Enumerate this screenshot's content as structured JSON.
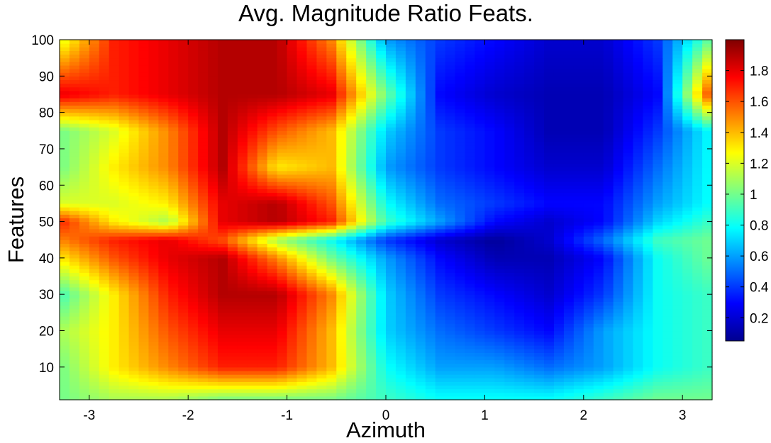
{
  "chart_data": {
    "type": "heatmap",
    "title": "Avg. Magnitude Ratio Feats.",
    "xlabel": "Azimuth",
    "ylabel": "Features",
    "xlim": [
      -3.3,
      3.3
    ],
    "ylim": [
      1,
      100
    ],
    "x_ticks": [
      "-3",
      "-2",
      "-1",
      "0",
      "1",
      "2",
      "3"
    ],
    "x_tick_values": [
      -3,
      -2,
      -1,
      0,
      1,
      2,
      3
    ],
    "y_ticks": [
      "10",
      "20",
      "30",
      "40",
      "50",
      "60",
      "70",
      "80",
      "90",
      "100"
    ],
    "y_tick_values": [
      10,
      20,
      30,
      40,
      50,
      60,
      70,
      80,
      90,
      100
    ],
    "colorbar": {
      "ticks": [
        "0.2",
        "0.4",
        "0.6",
        "0.8",
        "1",
        "1.2",
        "1.4",
        "1.6",
        "1.8"
      ],
      "tick_values": [
        0.2,
        0.4,
        0.6,
        0.8,
        1.0,
        1.2,
        1.4,
        1.6,
        1.8
      ],
      "range": [
        0.05,
        2.0
      ],
      "colormap": "jet"
    },
    "grid": false,
    "x_centers": [
      -3.3,
      -2.75,
      -2.2,
      -1.65,
      -1.1,
      -0.55,
      0,
      0.55,
      1.1,
      1.65,
      2.2,
      2.75,
      3.3
    ],
    "y_centers": [
      1,
      10,
      20,
      30,
      40,
      45,
      50,
      55,
      65,
      75,
      85,
      100
    ],
    "values": [
      [
        1.0,
        1.1,
        1.1,
        1.0,
        1.0,
        1.0,
        0.9,
        0.8,
        0.8,
        0.8,
        0.9,
        1.0,
        1.0
      ],
      [
        1.0,
        1.3,
        1.5,
        1.7,
        1.7,
        1.4,
        0.8,
        0.6,
        0.6,
        0.5,
        0.6,
        0.8,
        0.9
      ],
      [
        1.1,
        1.3,
        1.6,
        1.8,
        1.8,
        1.4,
        0.7,
        0.5,
        0.4,
        0.3,
        0.6,
        0.8,
        0.9
      ],
      [
        0.9,
        1.3,
        1.7,
        1.9,
        1.9,
        1.5,
        0.7,
        0.4,
        0.3,
        0.2,
        0.4,
        0.8,
        0.9
      ],
      [
        1.3,
        1.6,
        1.8,
        1.9,
        1.5,
        1.0,
        0.6,
        0.3,
        0.15,
        0.15,
        0.3,
        0.8,
        1.0
      ],
      [
        1.5,
        1.7,
        1.8,
        1.6,
        1.1,
        0.8,
        0.4,
        0.2,
        0.1,
        0.2,
        0.5,
        0.9,
        1.0
      ],
      [
        1.7,
        1.3,
        1.1,
        1.8,
        1.9,
        1.7,
        0.9,
        0.6,
        0.3,
        0.2,
        0.3,
        0.7,
        0.9
      ],
      [
        1.2,
        1.2,
        1.3,
        1.8,
        1.9,
        1.6,
        0.8,
        0.5,
        0.4,
        0.3,
        0.3,
        0.6,
        0.8
      ],
      [
        1.0,
        1.3,
        1.5,
        1.9,
        1.3,
        1.4,
        0.6,
        0.4,
        0.3,
        0.2,
        0.2,
        0.5,
        0.8
      ],
      [
        1.0,
        1.2,
        1.5,
        1.9,
        1.6,
        1.4,
        0.7,
        0.4,
        0.3,
        0.15,
        0.15,
        0.4,
        0.8
      ],
      [
        1.8,
        1.7,
        1.8,
        1.9,
        1.9,
        1.8,
        1.0,
        0.3,
        0.2,
        0.15,
        0.15,
        0.3,
        1.7
      ],
      [
        1.2,
        1.7,
        1.8,
        1.9,
        1.9,
        1.5,
        0.6,
        0.4,
        0.3,
        0.2,
        0.2,
        0.4,
        1.0
      ]
    ]
  }
}
